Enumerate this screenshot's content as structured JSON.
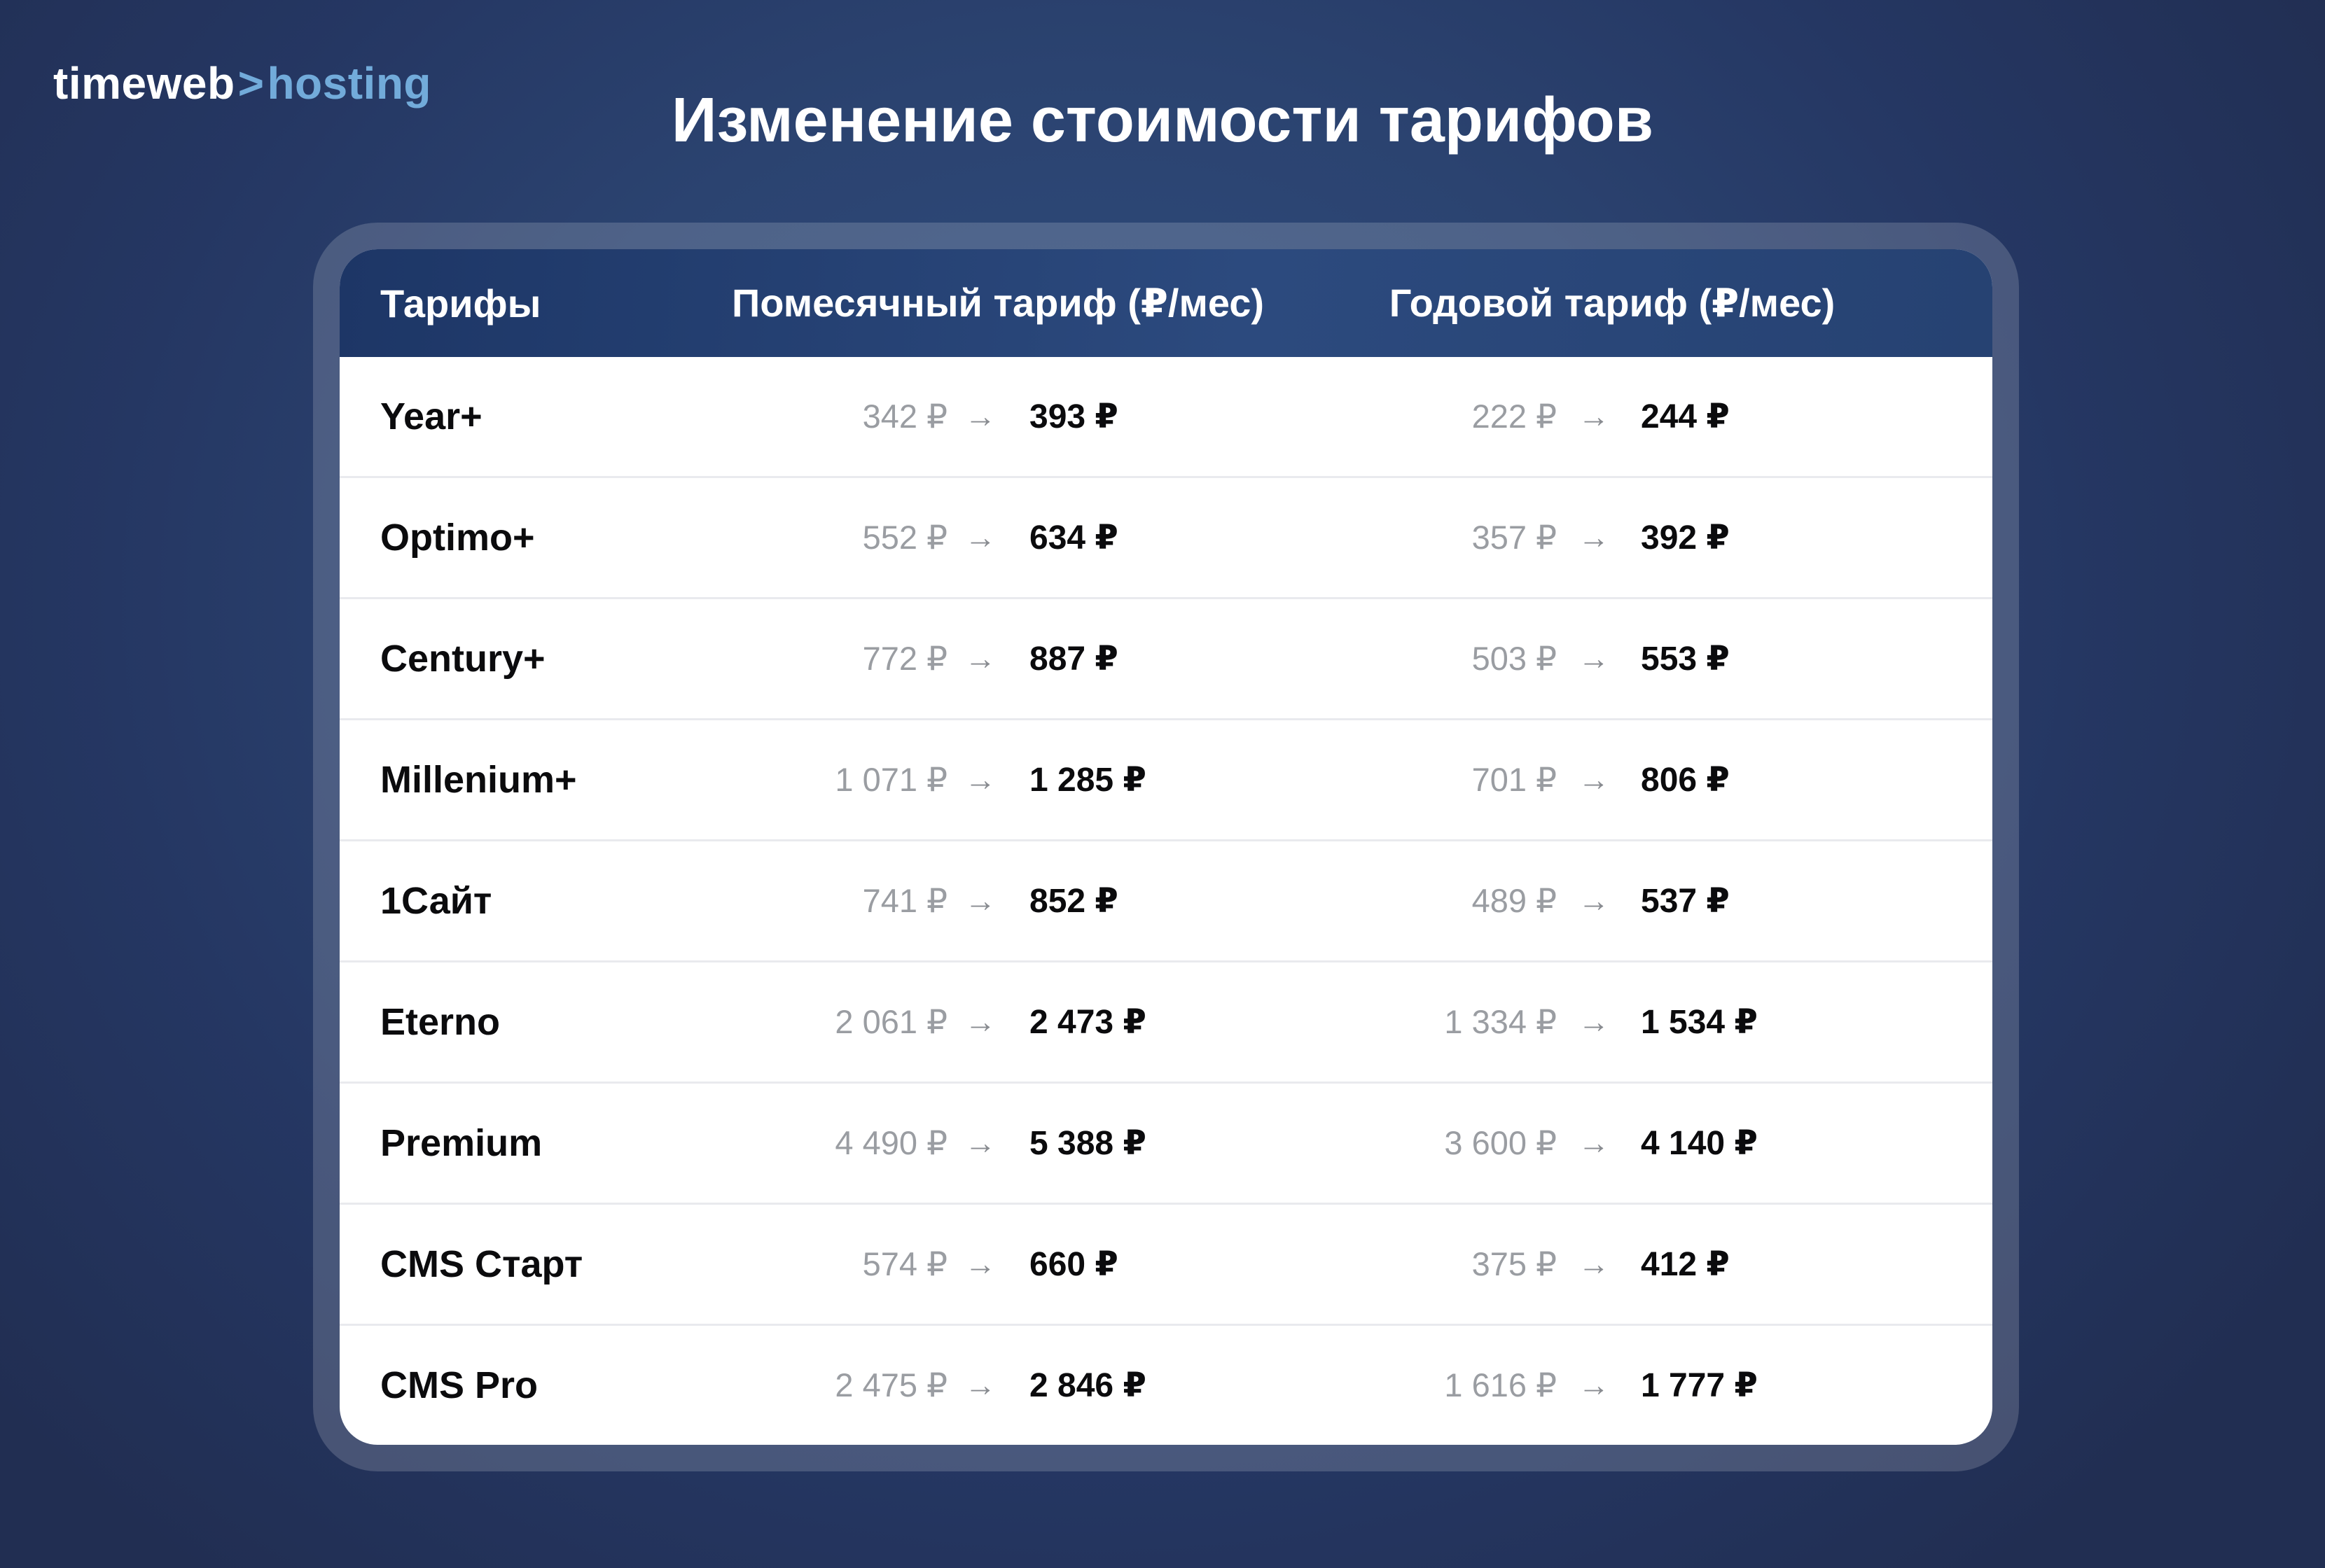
{
  "logo": {
    "brand": "timeweb",
    "separator": ">",
    "product": "hosting"
  },
  "title": "Изменение стоимости тарифов",
  "colors": {
    "background_navy": "#243763",
    "header_blue": "#2c4a7e",
    "logo_blue": "#72abda",
    "old_price_gray": "#9a9da2",
    "new_price_black": "#0b0b0d",
    "card_white": "#ffffff"
  },
  "table": {
    "arrow": "→",
    "currency": "₽",
    "headers": {
      "tariffs": "Тарифы",
      "monthly": "Помесячный тариф (₽/мес)",
      "yearly": "Годовой тариф (₽/мес)"
    },
    "rows": [
      {
        "name": "Year+",
        "monthly_old": "342 ₽",
        "monthly_new": "393 ₽",
        "yearly_old": "222 ₽",
        "yearly_new": "244 ₽"
      },
      {
        "name": "Optimo+",
        "monthly_old": "552 ₽",
        "monthly_new": "634 ₽",
        "yearly_old": "357 ₽",
        "yearly_new": "392 ₽"
      },
      {
        "name": "Century+",
        "monthly_old": "772 ₽",
        "monthly_new": "887 ₽",
        "yearly_old": "503 ₽",
        "yearly_new": "553 ₽"
      },
      {
        "name": "Millenium+",
        "monthly_old": "1 071 ₽",
        "monthly_new": "1 285 ₽",
        "yearly_old": "701 ₽",
        "yearly_new": "806 ₽"
      },
      {
        "name": "1Сайт",
        "monthly_old": "741 ₽",
        "monthly_new": "852 ₽",
        "yearly_old": "489 ₽",
        "yearly_new": "537 ₽"
      },
      {
        "name": "Eterno",
        "monthly_old": "2 061 ₽",
        "monthly_new": "2 473 ₽",
        "yearly_old": "1 334 ₽",
        "yearly_new": "1 534 ₽"
      },
      {
        "name": "Premium",
        "monthly_old": "4 490 ₽",
        "monthly_new": "5 388 ₽",
        "yearly_old": "3 600 ₽",
        "yearly_new": "4 140 ₽"
      },
      {
        "name": "CMS Старт",
        "monthly_old": "574 ₽",
        "monthly_new": "660 ₽",
        "yearly_old": "375 ₽",
        "yearly_new": "412 ₽"
      },
      {
        "name": "CMS Pro",
        "monthly_old": "2 475 ₽",
        "monthly_new": "2 846 ₽",
        "yearly_old": "1 616 ₽",
        "yearly_new": "1 777 ₽"
      }
    ]
  },
  "chart_data": {
    "type": "table",
    "title": "Изменение стоимости тарифов",
    "columns": [
      "Тарифы",
      "Помесячный тариф (₽/мес)",
      "Годовой тариф (₽/мес)"
    ],
    "unit": "₽",
    "rows": [
      {
        "tariff": "Year+",
        "monthly_old": 342,
        "monthly_new": 393,
        "yearly_old": 222,
        "yearly_new": 244
      },
      {
        "tariff": "Optimo+",
        "monthly_old": 552,
        "monthly_new": 634,
        "yearly_old": 357,
        "yearly_new": 392
      },
      {
        "tariff": "Century+",
        "monthly_old": 772,
        "monthly_new": 887,
        "yearly_old": 503,
        "yearly_new": 553
      },
      {
        "tariff": "Millenium+",
        "monthly_old": 1071,
        "monthly_new": 1285,
        "yearly_old": 701,
        "yearly_new": 806
      },
      {
        "tariff": "1Сайт",
        "monthly_old": 741,
        "monthly_new": 852,
        "yearly_old": 489,
        "yearly_new": 537
      },
      {
        "tariff": "Eterno",
        "monthly_old": 2061,
        "monthly_new": 2473,
        "yearly_old": 1334,
        "yearly_new": 1534
      },
      {
        "tariff": "Premium",
        "monthly_old": 4490,
        "monthly_new": 5388,
        "yearly_old": 3600,
        "yearly_new": 4140
      },
      {
        "tariff": "CMS Старт",
        "monthly_old": 574,
        "monthly_new": 660,
        "yearly_old": 375,
        "yearly_new": 412
      },
      {
        "tariff": "CMS Pro",
        "monthly_old": 2475,
        "monthly_new": 2846,
        "yearly_old": 1616,
        "yearly_new": 1777
      }
    ]
  }
}
